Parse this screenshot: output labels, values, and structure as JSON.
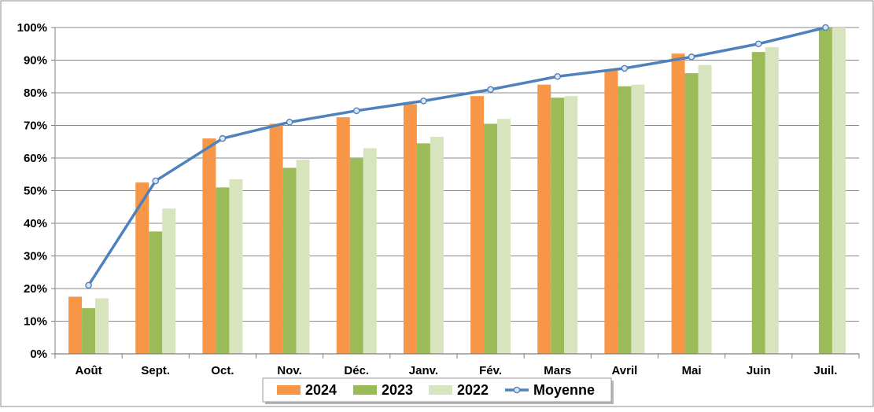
{
  "chart_data": {
    "type": "bar",
    "categories": [
      "Août",
      "Sept.",
      "Oct.",
      "Nov.",
      "Déc.",
      "Janv.",
      "Fév.",
      "Mars",
      "Avril",
      "Mai",
      "Juin",
      "Juil."
    ],
    "series": [
      {
        "name": "2024",
        "type": "bar",
        "color": "#f79646",
        "values": [
          17.5,
          52.5,
          66,
          70.5,
          72.5,
          76.5,
          79,
          82.5,
          87,
          92,
          null,
          null
        ]
      },
      {
        "name": "2023",
        "type": "bar",
        "color": "#9bbb59",
        "values": [
          14,
          37.5,
          51,
          57,
          60,
          64.5,
          70.5,
          78.5,
          82,
          86,
          92.5,
          100
        ]
      },
      {
        "name": "2022",
        "type": "bar",
        "color": "#d7e4bd",
        "values": [
          17,
          44.5,
          53.5,
          59.5,
          63,
          66.5,
          72,
          79,
          82.5,
          88.5,
          94,
          100
        ]
      },
      {
        "name": "Moyenne",
        "type": "line",
        "color": "#4f81bd",
        "values": [
          21,
          53,
          66,
          71,
          74.5,
          77.5,
          81,
          85,
          87.5,
          91,
          95,
          100
        ]
      }
    ],
    "y_ticks": [
      "0%",
      "10%",
      "20%",
      "30%",
      "40%",
      "50%",
      "60%",
      "70%",
      "80%",
      "90%",
      "100%"
    ],
    "ylim": [
      0,
      100
    ],
    "grid": true,
    "legend": "bottom"
  }
}
